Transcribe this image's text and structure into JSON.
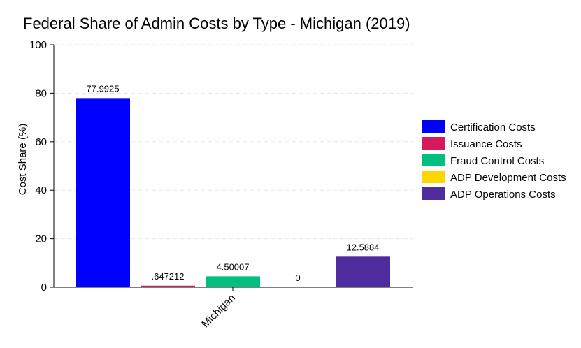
{
  "chart_data": {
    "type": "bar",
    "title": "Federal Share of Admin Costs by Type - Michigan (2019)",
    "xlabel": "",
    "ylabel": "Cost Share (%)",
    "categories": [
      "Michigan"
    ],
    "ylim": [
      0,
      100
    ],
    "yticks": [
      0,
      20,
      40,
      60,
      80,
      100
    ],
    "grid": true,
    "legend_position": "right",
    "series": [
      {
        "name": "Certification Costs",
        "values": [
          77.9925
        ],
        "label": "77.9925",
        "color": "#0000FF"
      },
      {
        "name": "Issuance Costs",
        "values": [
          0.647212
        ],
        "label": ".647212",
        "color": "#D6185C"
      },
      {
        "name": "Fraud Control Costs",
        "values": [
          4.50007
        ],
        "label": "4.50007",
        "color": "#00BF7F"
      },
      {
        "name": "ADP Development Costs",
        "values": [
          0
        ],
        "label": "0",
        "color": "#FFD700"
      },
      {
        "name": "ADP Operations Costs",
        "values": [
          12.5884
        ],
        "label": "12.5884",
        "color": "#4F2C9E"
      }
    ]
  }
}
